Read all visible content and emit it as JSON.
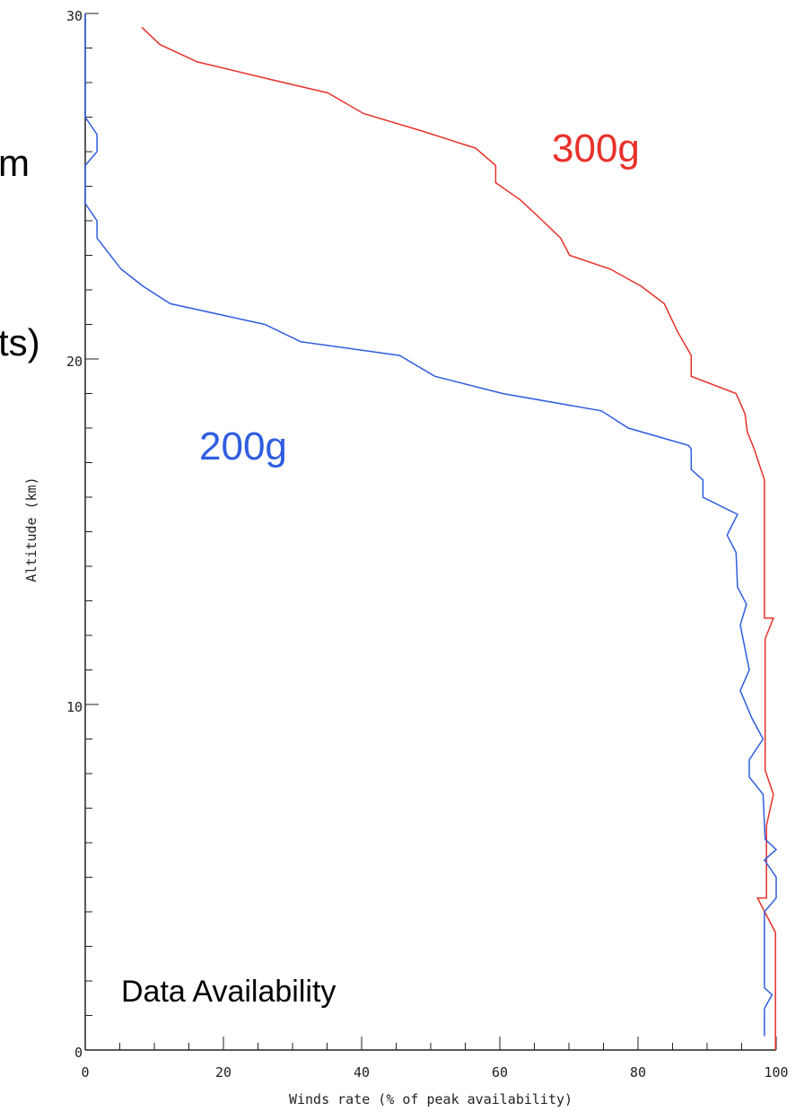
{
  "chart_data": {
    "type": "line",
    "xlabel": "Winds rate (% of peak availability)",
    "ylabel": "Altitude (km)",
    "annotations": [
      "m",
      "ts)",
      "Data Availability"
    ],
    "xlim": [
      0,
      100
    ],
    "xticks": [
      0,
      20,
      40,
      60,
      80,
      100
    ],
    "xminorticks": [
      5,
      10,
      15,
      25,
      30,
      35,
      45,
      50,
      55,
      65,
      70,
      75,
      85,
      90,
      95
    ],
    "ylim": [
      0,
      30
    ],
    "yticks": [
      0,
      10,
      20,
      30
    ],
    "yminorticks": [
      1,
      2,
      3,
      4,
      5,
      6,
      7,
      8,
      9,
      11,
      12,
      13,
      14,
      15,
      16,
      17,
      18,
      19,
      21,
      22,
      23,
      24,
      25,
      26,
      27,
      28,
      29
    ],
    "series": [
      {
        "name": "300g",
        "color": "#e8312a",
        "x": [
          8.2,
          10.8,
          16.2,
          26.6,
          35.1,
          40.3,
          48.7,
          56.5,
          59.4,
          59.4,
          63.0,
          66.2,
          68.8,
          70.1,
          76.0,
          80.5,
          83.8,
          85.7,
          87.7,
          87.7,
          94.2,
          95.5,
          95.8,
          96.8,
          98.3,
          98.3,
          99.6,
          98.4,
          98.4,
          99.6,
          98.6,
          98.6,
          97.3,
          98.6,
          99.9,
          99.9
        ],
        "y": [
          29.6,
          29.1,
          28.6,
          28.1,
          27.7,
          27.1,
          26.6,
          26.1,
          25.6,
          25.1,
          24.6,
          24.0,
          23.5,
          23.0,
          22.6,
          22.1,
          21.6,
          20.8,
          20.1,
          19.5,
          19.0,
          18.4,
          17.9,
          17.4,
          16.5,
          12.5,
          12.5,
          11.9,
          8.1,
          7.4,
          6.5,
          4.4,
          4.4,
          3.9,
          3.4,
          0
        ]
      },
      {
        "name": "200g",
        "color": "#2f5de0",
        "x": [
          0,
          0,
          1.7,
          1.7,
          0,
          0,
          1.7,
          1.7,
          5.2,
          8.4,
          12.3,
          26.0,
          31.2,
          45.5,
          50.6,
          60.4,
          74.7,
          78.6,
          87.3,
          87.7,
          87.7,
          89.4,
          89.4,
          94.4,
          92.9,
          94.2,
          94.4,
          95.7,
          94.8,
          96.1,
          94.8,
          96.5,
          98.1,
          96.1,
          96.1,
          98.1,
          98.4,
          100,
          98.3,
          100,
          100,
          98.3,
          98.3,
          99.4,
          98.3,
          98.3
        ],
        "y": [
          30,
          27.0,
          26.5,
          26.0,
          25.6,
          24.5,
          24.0,
          23.5,
          22.6,
          22.1,
          21.6,
          21.0,
          20.5,
          20.1,
          19.5,
          19.0,
          18.5,
          18.0,
          17.5,
          17.4,
          16.8,
          16.5,
          16.0,
          15.5,
          14.9,
          14.4,
          13.4,
          12.9,
          12.3,
          11.0,
          10.4,
          9.6,
          9.0,
          8.4,
          7.9,
          7.4,
          6.1,
          5.8,
          5.5,
          5.0,
          4.4,
          4.0,
          1.8,
          1.6,
          1.2,
          0.4
        ]
      }
    ]
  }
}
